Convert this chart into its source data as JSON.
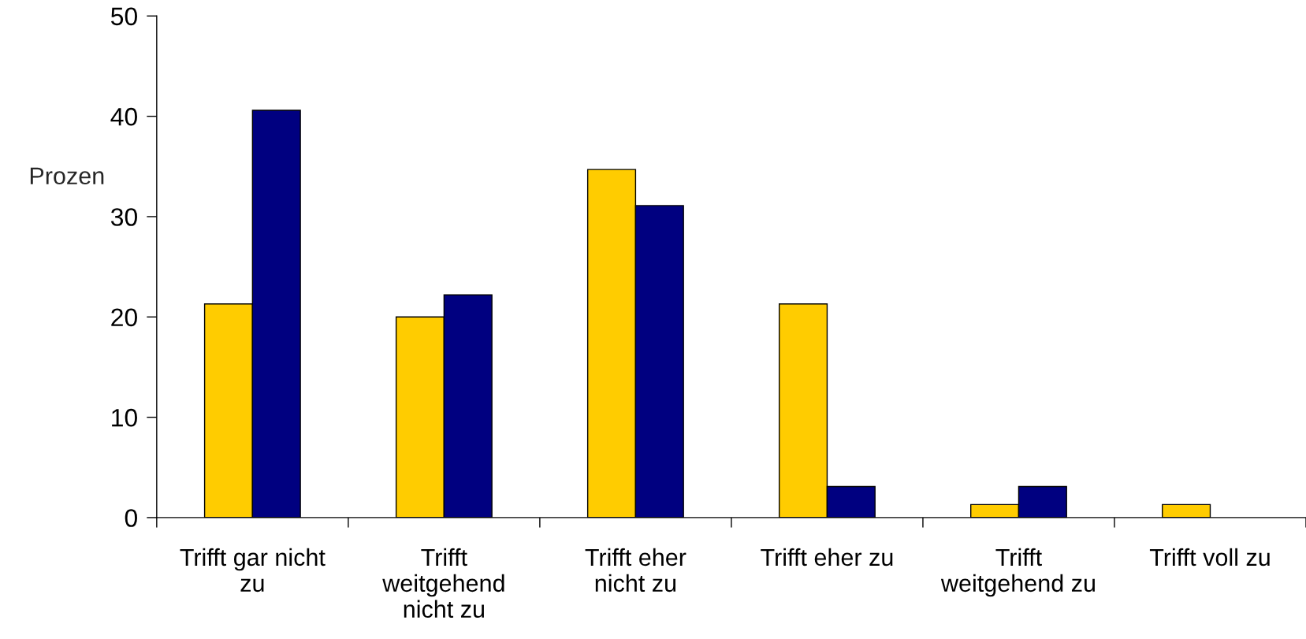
{
  "chart_data": {
    "type": "bar",
    "ylabel": "Prozen",
    "categories": [
      "Trifft gar nicht\nzu",
      "Trifft\nweitgehend\nnicht zu",
      "Trifft eher\nnicht zu",
      "Trifft eher zu",
      "Trifft\nweitgehend zu",
      "Trifft voll zu"
    ],
    "series": [
      {
        "color": "#ffcc00",
        "values": [
          21.3,
          20.0,
          34.7,
          21.3,
          1.3,
          1.3
        ]
      },
      {
        "color": "#000080",
        "values": [
          40.6,
          22.2,
          31.1,
          3.1,
          3.1,
          null
        ]
      }
    ],
    "ylim": [
      0,
      50
    ],
    "yticks": [
      0,
      10,
      20,
      30,
      40,
      50
    ],
    "grid": false,
    "legend": false
  }
}
